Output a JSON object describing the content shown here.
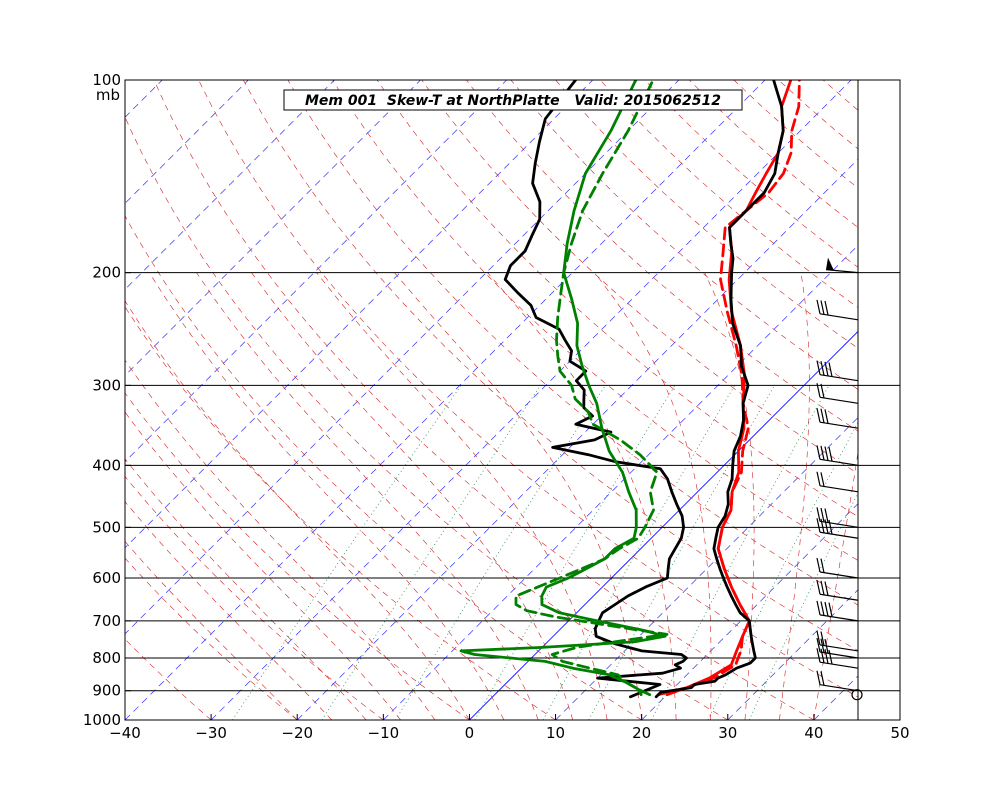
{
  "chart_data": {
    "type": "line",
    "title": "Mem 001  Skew-T at NorthPlatte   Valid: 2015062512",
    "xlabel": "",
    "ylabel": "",
    "p_unit": "mb",
    "xlim": [
      -40,
      50
    ],
    "plim": [
      1000,
      100
    ],
    "p_scale": "log",
    "skew": "temperature lines slanted 45 degrees",
    "x_ticks": [
      -40,
      -30,
      -20,
      -10,
      0,
      10,
      20,
      30,
      40,
      50
    ],
    "p_ticks": [
      100,
      200,
      300,
      400,
      500,
      600,
      700,
      800,
      900,
      1000
    ],
    "grid": {
      "isobars": "black horizontal at labeled pressures",
      "isotherms": "blue dashed, every 10 C",
      "zero_isotherm": "blue solid",
      "dry_adiabats": "red dashed",
      "moist_adiabats": "red dashed",
      "mixing_ratio": "green dotted"
    },
    "colors": {
      "temperature_obs": "#000000",
      "temperature_member": "#ff0000",
      "dewpoint_member": "#008000",
      "isotherm": "#0000ff",
      "adiabat": "#cc0000",
      "mixing_ratio": "#008000"
    },
    "series": [
      {
        "role": "temperature_member",
        "color": "#ff0000",
        "style": "solid",
        "points": [
          [
            913,
            20
          ],
          [
            890,
            21.5
          ],
          [
            860,
            23
          ],
          [
            820,
            24
          ],
          [
            780,
            23
          ],
          [
            740,
            22
          ],
          [
            700,
            21
          ],
          [
            660,
            18
          ],
          [
            620,
            15
          ],
          [
            580,
            12
          ],
          [
            540,
            9
          ],
          [
            500,
            7
          ],
          [
            470,
            6
          ],
          [
            440,
            4
          ],
          [
            410,
            2.5
          ],
          [
            380,
            0
          ],
          [
            350,
            -2
          ],
          [
            320,
            -5
          ],
          [
            290,
            -8
          ],
          [
            260,
            -12
          ],
          [
            230,
            -17
          ],
          [
            205,
            -21
          ],
          [
            185,
            -24
          ],
          [
            170,
            -27
          ],
          [
            160,
            -27
          ],
          [
            150,
            -28
          ],
          [
            140,
            -29
          ],
          [
            130,
            -30
          ],
          [
            120,
            -32
          ],
          [
            110,
            -35
          ],
          [
            100,
            -37
          ]
        ]
      },
      {
        "role": "temperature_member",
        "color": "#ff0000",
        "style": "dashed",
        "points": [
          [
            913,
            19
          ],
          [
            890,
            21.5
          ],
          [
            860,
            23.5
          ],
          [
            820,
            24.5
          ],
          [
            780,
            23.5
          ],
          [
            740,
            22
          ],
          [
            700,
            21
          ],
          [
            660,
            18
          ],
          [
            620,
            15
          ],
          [
            580,
            12
          ],
          [
            540,
            9
          ],
          [
            500,
            7
          ],
          [
            470,
            6
          ],
          [
            440,
            4
          ],
          [
            410,
            2.8
          ],
          [
            380,
            0.5
          ],
          [
            350,
            -1.5
          ],
          [
            320,
            -5
          ],
          [
            290,
            -8.3
          ],
          [
            260,
            -12.5
          ],
          [
            230,
            -17.5
          ],
          [
            205,
            -22
          ],
          [
            185,
            -25
          ],
          [
            170,
            -27.5
          ],
          [
            160,
            -27
          ],
          [
            150,
            -26.5
          ],
          [
            140,
            -27
          ],
          [
            130,
            -28.5
          ],
          [
            120,
            -31
          ],
          [
            110,
            -33
          ],
          [
            100,
            -36
          ]
        ]
      },
      {
        "role": "temperature_obs",
        "color": "#000000",
        "style": "solid",
        "points": [
          [
            920,
            19
          ],
          [
            905,
            19
          ],
          [
            900,
            20
          ],
          [
            890,
            22
          ],
          [
            880,
            22
          ],
          [
            870,
            24
          ],
          [
            860,
            24
          ],
          [
            850,
            24.5
          ],
          [
            830,
            25
          ],
          [
            815,
            26
          ],
          [
            800,
            26
          ],
          [
            780,
            25
          ],
          [
            760,
            24
          ],
          [
            740,
            23
          ],
          [
            720,
            22
          ],
          [
            700,
            21
          ],
          [
            680,
            19
          ],
          [
            660,
            17.5
          ],
          [
            640,
            16
          ],
          [
            620,
            14.5
          ],
          [
            600,
            13
          ],
          [
            580,
            11.5
          ],
          [
            560,
            10
          ],
          [
            540,
            8.5
          ],
          [
            520,
            7.5
          ],
          [
            500,
            6.5
          ],
          [
            480,
            6
          ],
          [
            460,
            5
          ],
          [
            440,
            3.5
          ],
          [
            420,
            2.5
          ],
          [
            400,
            1
          ],
          [
            380,
            -0.5
          ],
          [
            360,
            -1.5
          ],
          [
            340,
            -3
          ],
          [
            320,
            -5
          ],
          [
            300,
            -6.5
          ],
          [
            280,
            -9.5
          ],
          [
            260,
            -12
          ],
          [
            240,
            -15.5
          ],
          [
            220,
            -18.5
          ],
          [
            200,
            -21.5
          ],
          [
            190,
            -23
          ],
          [
            180,
            -25
          ],
          [
            170,
            -27
          ],
          [
            160,
            -27
          ],
          [
            150,
            -27
          ],
          [
            140,
            -28
          ],
          [
            130,
            -30
          ],
          [
            120,
            -32
          ],
          [
            110,
            -35
          ],
          [
            100,
            -39
          ]
        ]
      },
      {
        "role": "dewpoint_obs",
        "color": "#000000",
        "style": "solid",
        "points": [
          [
            920,
            16
          ],
          [
            900,
            17
          ],
          [
            880,
            18
          ],
          [
            860,
            10
          ],
          [
            845,
            17
          ],
          [
            830,
            18.5
          ],
          [
            820,
            17.5
          ],
          [
            810,
            18
          ],
          [
            800,
            18
          ],
          [
            790,
            17
          ],
          [
            780,
            12
          ],
          [
            760,
            8
          ],
          [
            740,
            5
          ],
          [
            720,
            4
          ],
          [
            700,
            3.5
          ],
          [
            680,
            3
          ],
          [
            660,
            3.5
          ],
          [
            640,
            4
          ],
          [
            620,
            5
          ],
          [
            600,
            6.5
          ],
          [
            580,
            5.5
          ],
          [
            560,
            4.5
          ],
          [
            540,
            4
          ],
          [
            520,
            3.5
          ],
          [
            500,
            2.5
          ],
          [
            480,
            1
          ],
          [
            460,
            -1
          ],
          [
            440,
            -3
          ],
          [
            420,
            -5
          ],
          [
            405,
            -7
          ],
          [
            395,
            -13
          ],
          [
            385,
            -17
          ],
          [
            375,
            -22
          ],
          [
            365,
            -18
          ],
          [
            355,
            -17
          ],
          [
            345,
            -22
          ],
          [
            335,
            -21
          ],
          [
            325,
            -23
          ],
          [
            315,
            -24
          ],
          [
            305,
            -25
          ],
          [
            295,
            -27
          ],
          [
            285,
            -27
          ],
          [
            275,
            -30
          ],
          [
            265,
            -31
          ],
          [
            255,
            -33
          ],
          [
            245,
            -35
          ],
          [
            235,
            -39
          ],
          [
            225,
            -41
          ],
          [
            215,
            -44
          ],
          [
            205,
            -47
          ],
          [
            195,
            -48
          ],
          [
            185,
            -48
          ],
          [
            175,
            -49
          ],
          [
            165,
            -50
          ],
          [
            155,
            -52
          ],
          [
            145,
            -55
          ],
          [
            135,
            -57
          ],
          [
            125,
            -59
          ],
          [
            115,
            -61
          ],
          [
            100,
            -62
          ]
        ]
      },
      {
        "role": "dewpoint_member",
        "color": "#008000",
        "style": "solid",
        "points": [
          [
            913,
            17
          ],
          [
            895,
            16
          ],
          [
            875,
            14
          ],
          [
            850,
            11
          ],
          [
            830,
            6
          ],
          [
            810,
            2
          ],
          [
            790,
            -7
          ],
          [
            780,
            -9
          ],
          [
            770,
            0
          ],
          [
            755,
            10
          ],
          [
            740,
            13
          ],
          [
            725,
            10
          ],
          [
            710,
            6
          ],
          [
            695,
            2
          ],
          [
            680,
            -2
          ],
          [
            660,
            -5
          ],
          [
            640,
            -6
          ],
          [
            620,
            -6.5
          ],
          [
            600,
            -5
          ],
          [
            580,
            -4
          ],
          [
            560,
            -3
          ],
          [
            540,
            -3
          ],
          [
            520,
            -2
          ],
          [
            500,
            -3
          ],
          [
            470,
            -5
          ],
          [
            440,
            -8
          ],
          [
            410,
            -11
          ],
          [
            380,
            -15
          ],
          [
            350,
            -18.5
          ],
          [
            320,
            -22
          ],
          [
            300,
            -25
          ],
          [
            280,
            -28
          ],
          [
            260,
            -31
          ],
          [
            240,
            -33.5
          ],
          [
            220,
            -37
          ],
          [
            200,
            -41
          ],
          [
            180,
            -44
          ],
          [
            160,
            -47
          ],
          [
            140,
            -50
          ],
          [
            120,
            -52
          ],
          [
            100,
            -55
          ]
        ]
      },
      {
        "role": "dewpoint_member",
        "color": "#008000",
        "style": "dashed",
        "points": [
          [
            913,
            18
          ],
          [
            895,
            16
          ],
          [
            875,
            14
          ],
          [
            850,
            12
          ],
          [
            830,
            8
          ],
          [
            810,
            4
          ],
          [
            790,
            2
          ],
          [
            770,
            4
          ],
          [
            750,
            9
          ],
          [
            735,
            13
          ],
          [
            720,
            8
          ],
          [
            705,
            3
          ],
          [
            690,
            -2
          ],
          [
            675,
            -6
          ],
          [
            660,
            -8
          ],
          [
            640,
            -9
          ],
          [
            620,
            -7.5
          ],
          [
            600,
            -6
          ],
          [
            580,
            -4.5
          ],
          [
            560,
            -3
          ],
          [
            540,
            -2.5
          ],
          [
            520,
            -1.5
          ],
          [
            500,
            -2
          ],
          [
            470,
            -3
          ],
          [
            440,
            -5.5
          ],
          [
            410,
            -7
          ],
          [
            385,
            -11
          ],
          [
            365,
            -15
          ],
          [
            345,
            -20
          ],
          [
            330,
            -22
          ],
          [
            315,
            -25
          ],
          [
            300,
            -27
          ],
          [
            285,
            -30
          ],
          [
            270,
            -32
          ],
          [
            255,
            -34
          ],
          [
            235,
            -36.5
          ],
          [
            215,
            -39
          ],
          [
            200,
            -41
          ],
          [
            180,
            -43.5
          ],
          [
            160,
            -46
          ],
          [
            140,
            -48
          ],
          [
            120,
            -50
          ],
          [
            100,
            -53
          ]
        ]
      }
    ]
  },
  "wind_barbs": {
    "levels": [
      200,
      237,
      295,
      320,
      350,
      400,
      440,
      500,
      520,
      600,
      650,
      700,
      780,
      800,
      830,
      900
    ],
    "surface_marker": "calm-circle"
  }
}
